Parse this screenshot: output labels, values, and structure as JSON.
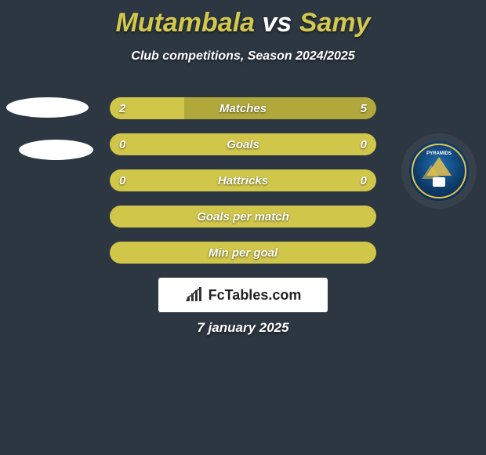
{
  "title": {
    "player1": "Mutambala",
    "vs": " vs ",
    "player2": "Samy",
    "color1": "#d1c84d",
    "color2": "#ffffff"
  },
  "subtitle": "Club competitions, Season 2024/2025",
  "bars": {
    "track_color": "#b1a83c",
    "fill_color": "#cfc64a",
    "label_text_color": "#ffffff",
    "rows": [
      {
        "left": "2",
        "label": "Matches",
        "right": "5",
        "fill_pct": 28
      },
      {
        "left": "0",
        "label": "Goals",
        "right": "0",
        "fill_pct": 100
      },
      {
        "left": "0",
        "label": "Hattricks",
        "right": "0",
        "fill_pct": 100
      },
      {
        "left": "",
        "label": "Goals per match",
        "right": "",
        "fill_pct": 100
      },
      {
        "left": "",
        "label": "Min per goal",
        "right": "",
        "fill_pct": 100
      }
    ]
  },
  "badge": {
    "label": "PYRAMIDS",
    "inner_bg": "#0d3a66",
    "stroke": "#e7c14a"
  },
  "fctables": {
    "text": "FcTables.com",
    "bar_color": "#333333"
  },
  "date": "7 january 2025",
  "background_color": "#2d3742"
}
